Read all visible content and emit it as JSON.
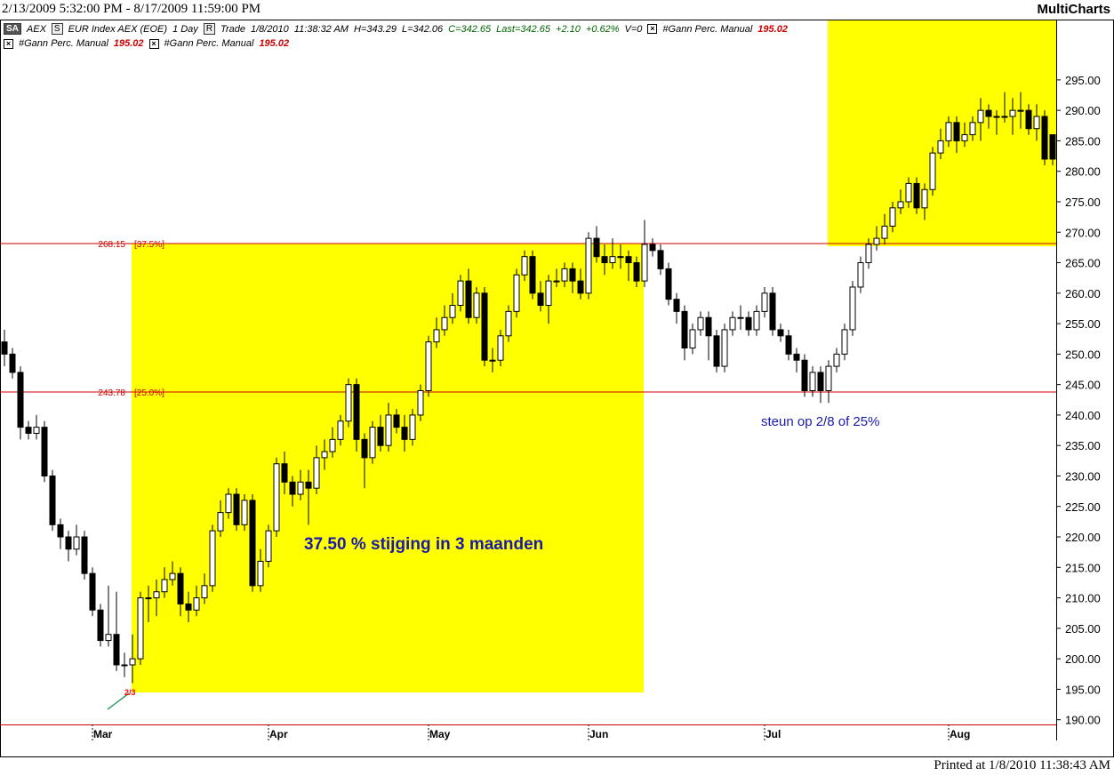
{
  "header": {
    "range": "2/13/2009 5:32:00 PM - 8/17/2009 11:59:00 PM",
    "app": "MultiCharts"
  },
  "legend_line": {
    "sa": "SA",
    "symbol": "AEX",
    "s": "S",
    "description": "EUR Index AEX (EOE)",
    "interval": "1 Day",
    "r": "R",
    "mode": "Trade",
    "date": "1/8/2010",
    "time": "11:38:32 AM",
    "high": "H=343.29",
    "low": "L=342.06",
    "close": "C=342.65",
    "last": "Last=342.65",
    "change": "+2.10",
    "change_pct": "+0.62%",
    "volume": "V=0"
  },
  "indicators": [
    {
      "name": "#Gann Perc. Manual",
      "value": "195.02"
    },
    {
      "name": "#Gann Perc. Manual",
      "value": "195.02"
    },
    {
      "name": "#Gann Perc. Manual",
      "value": "195.02"
    }
  ],
  "chart_data": {
    "type": "candlestick",
    "categories": [
      null,
      null,
      null,
      null,
      null,
      null,
      null,
      null,
      null,
      null,
      null,
      "Mar",
      null,
      null,
      null,
      null,
      null,
      null,
      null,
      null,
      null,
      null,
      null,
      null,
      null,
      null,
      null,
      null,
      null,
      null,
      null,
      null,
      null,
      "Apr",
      null,
      null,
      null,
      null,
      null,
      null,
      null,
      null,
      null,
      null,
      null,
      null,
      null,
      null,
      null,
      null,
      null,
      null,
      null,
      "May",
      null,
      null,
      null,
      null,
      null,
      null,
      null,
      null,
      null,
      null,
      null,
      null,
      null,
      null,
      null,
      null,
      null,
      null,
      null,
      "Jun",
      null,
      null,
      null,
      null,
      null,
      null,
      null,
      null,
      null,
      null,
      null,
      null,
      null,
      null,
      null,
      null,
      null,
      null,
      null,
      null,
      null,
      "Jul",
      null,
      null,
      null,
      null,
      null,
      null,
      null,
      null,
      null,
      null,
      null,
      null,
      null,
      null,
      null,
      null,
      null,
      null,
      null,
      null,
      null,
      null,
      "Aug",
      null,
      null,
      null,
      null,
      null,
      null,
      null,
      null,
      null,
      null,
      null,
      null,
      null
    ],
    "open": [
      252,
      250,
      247,
      238,
      237,
      238,
      230,
      222,
      220,
      218,
      220,
      214,
      208,
      203,
      204,
      199,
      199,
      200,
      210,
      210,
      211,
      213,
      214,
      209,
      208,
      210,
      212,
      221,
      224,
      227,
      222,
      226,
      212,
      216,
      221,
      232,
      229,
      227,
      229,
      228,
      233,
      234,
      236,
      239,
      245,
      236,
      233,
      238,
      235,
      240,
      238,
      236,
      240,
      244,
      252,
      254,
      256,
      258,
      262,
      256,
      260,
      249,
      249,
      253,
      257,
      263,
      266,
      260,
      258,
      262,
      262,
      264,
      262,
      260,
      269,
      266,
      265,
      266,
      266,
      265,
      262,
      268,
      267,
      264,
      259,
      257,
      251,
      254,
      256,
      253,
      248,
      254,
      256,
      256,
      254,
      257,
      260,
      254,
      253,
      250,
      249,
      244,
      247,
      244,
      248,
      250,
      254,
      261,
      265,
      268,
      269,
      271,
      274,
      275,
      278,
      274,
      277,
      283,
      285,
      288,
      285,
      286,
      288,
      290,
      289,
      289,
      289,
      290,
      290,
      287,
      289,
      286
    ],
    "high": [
      254,
      251,
      248,
      239,
      240,
      239,
      231,
      223,
      221,
      222,
      221,
      215,
      209,
      212,
      211,
      201,
      204,
      211,
      212,
      213,
      215,
      216,
      215,
      211,
      212,
      214,
      222,
      226,
      228,
      228,
      227,
      227,
      218,
      222,
      233,
      234,
      230,
      231,
      231,
      235,
      236,
      238,
      240,
      246,
      246,
      237,
      239,
      240,
      242,
      241,
      240,
      241,
      245,
      253,
      256,
      258,
      260,
      263,
      264,
      261,
      261,
      251,
      254,
      258,
      264,
      267,
      267,
      262,
      263,
      264,
      265,
      265,
      264,
      270,
      271,
      268,
      269,
      268,
      267,
      266,
      272,
      269,
      268,
      265,
      260,
      258,
      255,
      257,
      257,
      254,
      255,
      257,
      258,
      257,
      258,
      261,
      261,
      255,
      254,
      251,
      250,
      248,
      248,
      249,
      251,
      255,
      262,
      266,
      269,
      271,
      273,
      275,
      277,
      279,
      279,
      278,
      284,
      287,
      289,
      289,
      288,
      289,
      292,
      291,
      290,
      293,
      292,
      293,
      291,
      291,
      290,
      286
    ],
    "low": [
      248,
      246,
      236,
      236,
      236,
      229,
      221,
      218,
      216,
      217,
      213,
      207,
      202,
      202,
      198,
      197,
      196,
      199,
      206,
      207,
      210,
      212,
      207,
      206,
      207,
      209,
      211,
      220,
      223,
      221,
      221,
      211,
      211,
      215,
      220,
      227,
      225,
      226,
      222,
      227,
      231,
      233,
      235,
      238,
      234,
      228,
      232,
      234,
      234,
      237,
      234,
      235,
      239,
      243,
      251,
      253,
      255,
      257,
      255,
      255,
      248,
      247,
      248,
      252,
      256,
      262,
      259,
      257,
      255,
      261,
      261,
      260,
      259,
      259,
      265,
      263,
      264,
      264,
      262,
      261,
      261,
      266,
      263,
      258,
      255,
      249,
      250,
      253,
      249,
      247,
      247,
      253,
      254,
      253,
      253,
      256,
      253,
      252,
      249,
      247,
      243,
      243,
      242,
      242,
      247,
      249,
      253,
      260,
      264,
      267,
      268,
      270,
      273,
      274,
      273,
      272,
      276,
      282,
      284,
      283,
      284,
      285,
      285,
      287,
      286,
      288,
      286,
      287,
      286,
      285,
      281,
      281
    ],
    "close": [
      250,
      247,
      238,
      237,
      238,
      230,
      222,
      220,
      218,
      220,
      214,
      208,
      203,
      204,
      199,
      199,
      200,
      210,
      210,
      211,
      213,
      214,
      209,
      208,
      210,
      212,
      221,
      224,
      227,
      222,
      226,
      212,
      216,
      221,
      232,
      229,
      227,
      229,
      228,
      233,
      234,
      236,
      239,
      245,
      236,
      233,
      238,
      235,
      240,
      238,
      236,
      240,
      244,
      252,
      254,
      256,
      258,
      262,
      256,
      260,
      249,
      249,
      253,
      257,
      263,
      266,
      260,
      258,
      262,
      262,
      264,
      262,
      260,
      269,
      266,
      265,
      266,
      266,
      265,
      262,
      268,
      267,
      264,
      259,
      257,
      251,
      254,
      256,
      253,
      248,
      254,
      256,
      256,
      254,
      257,
      260,
      254,
      253,
      250,
      249,
      244,
      247,
      244,
      248,
      250,
      254,
      261,
      265,
      268,
      269,
      271,
      274,
      275,
      278,
      274,
      277,
      283,
      285,
      288,
      285,
      286,
      288,
      290,
      289,
      289,
      289,
      290,
      290,
      287,
      289,
      282,
      282
    ],
    "up_color": "#ffffff",
    "down_color": "#000000",
    "ylim": [
      186.6,
      304.9
    ],
    "yticks": [
      {
        "value": 190,
        "label": "190.00"
      },
      {
        "value": 195,
        "label": "195.00"
      },
      {
        "value": 200,
        "label": "200.00"
      },
      {
        "value": 205,
        "label": "205.00"
      },
      {
        "value": 210,
        "label": "210.00"
      },
      {
        "value": 215,
        "label": "215.00"
      },
      {
        "value": 220,
        "label": "220.00"
      },
      {
        "value": 225,
        "label": "225.00"
      },
      {
        "value": 230,
        "label": "230.00"
      },
      {
        "value": 235,
        "label": "235.00"
      },
      {
        "value": 240,
        "label": "240.00"
      },
      {
        "value": 245,
        "label": "245.00"
      },
      {
        "value": 250,
        "label": "250.00"
      },
      {
        "value": 255,
        "label": "255.00"
      },
      {
        "value": 260,
        "label": "260.00"
      },
      {
        "value": 265,
        "label": "265.00"
      },
      {
        "value": 270,
        "label": "270.00"
      },
      {
        "value": 275,
        "label": "275.00"
      },
      {
        "value": 280,
        "label": "280.00"
      },
      {
        "value": 285,
        "label": "285.00"
      },
      {
        "value": 290,
        "label": "290.00"
      },
      {
        "value": 295,
        "label": "295.00"
      }
    ],
    "levels": [
      {
        "value": 268.15,
        "label": "[37.5%]"
      },
      {
        "value": 243.78,
        "label": "[25.0%]"
      }
    ],
    "level_color": "#cc0000",
    "annotations": [
      "37.50 % stijging in 3 maanden",
      "steun op 2/8 of 25%",
      "2/3"
    ]
  },
  "footer": "Printed at 1/8/2010 11:38:43 AM"
}
